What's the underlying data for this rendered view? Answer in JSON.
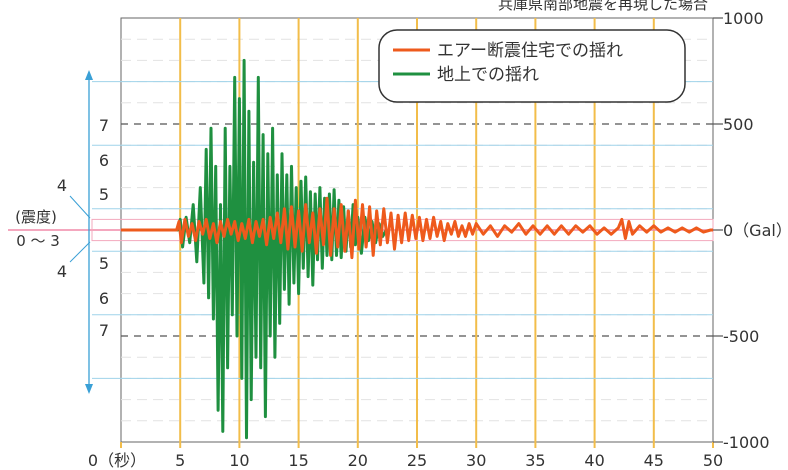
{
  "chart_data": {
    "type": "line",
    "title": "兵庫県南部地震を再現した場合",
    "x_ticks": [
      0,
      5,
      10,
      15,
      20,
      25,
      30,
      35,
      40,
      45,
      50
    ],
    "x_zero_label": "0（秒）",
    "xlim": [
      0,
      50
    ],
    "y_ticks": [
      1000,
      500,
      0,
      -500,
      -1000
    ],
    "y_zero_label": "0（Gal）",
    "ylim": [
      -1000,
      1000
    ],
    "intensity_scale": {
      "title": "(震度)",
      "center_label": "0 ～ 3",
      "upper": [
        "7",
        "6",
        "5",
        "4"
      ],
      "lower": [
        "4",
        "5",
        "6",
        "7"
      ]
    },
    "series": [
      {
        "name": "エアー断震住宅での揺れ",
        "color": "#ee5a1c",
        "x": [
          0,
          4.7,
          4.9,
          5.1,
          5.4,
          5.7,
          6.0,
          6.3,
          6.6,
          6.9,
          7.2,
          7.5,
          7.8,
          8.1,
          8.4,
          8.7,
          9.0,
          9.3,
          9.6,
          9.9,
          10.2,
          10.5,
          10.8,
          11.1,
          11.4,
          11.7,
          12.0,
          12.3,
          12.6,
          12.9,
          13.2,
          13.5,
          13.8,
          14.1,
          14.4,
          14.7,
          15.0,
          15.3,
          15.6,
          15.9,
          16.2,
          16.5,
          16.8,
          17.1,
          17.4,
          17.7,
          18.0,
          18.3,
          18.6,
          18.9,
          19.2,
          19.5,
          19.8,
          20.1,
          20.4,
          20.7,
          21.0,
          21.3,
          21.6,
          21.9,
          22.2,
          22.5,
          22.8,
          23.1,
          23.4,
          23.7,
          24.0,
          24.3,
          24.6,
          24.9,
          25.2,
          25.5,
          25.8,
          26.1,
          26.4,
          26.7,
          27.0,
          27.3,
          27.6,
          27.9,
          28.2,
          28.5,
          28.8,
          29.1,
          29.4,
          29.7,
          30.0,
          30.6,
          31.2,
          31.8,
          32.4,
          33.0,
          33.6,
          34.2,
          34.8,
          35.4,
          36.0,
          36.6,
          37.2,
          37.8,
          38.4,
          39.0,
          39.6,
          40.2,
          40.8,
          41.4,
          42.0,
          42.3,
          42.6,
          42.9,
          43.2,
          43.8,
          44.4,
          45.0,
          45.6,
          46.2,
          46.8,
          47.4,
          48.0,
          48.6,
          49.2,
          49.8,
          50
        ],
        "y": [
          0,
          0,
          40,
          -60,
          50,
          -30,
          30,
          -50,
          40,
          -20,
          50,
          -40,
          30,
          -60,
          40,
          -30,
          50,
          -20,
          40,
          -50,
          30,
          -40,
          50,
          -60,
          40,
          -30,
          50,
          -70,
          60,
          -40,
          80,
          -60,
          100,
          -90,
          110,
          -80,
          90,
          -100,
          120,
          -60,
          80,
          -110,
          100,
          -70,
          150,
          -120,
          100,
          -80,
          120,
          -100,
          90,
          -130,
          140,
          -90,
          120,
          -80,
          110,
          -120,
          90,
          -70,
          100,
          -60,
          80,
          -90,
          70,
          -60,
          80,
          -50,
          70,
          -40,
          60,
          -50,
          50,
          -40,
          60,
          -30,
          40,
          -50,
          30,
          -20,
          40,
          -30,
          20,
          -30,
          30,
          -20,
          30,
          -20,
          20,
          -30,
          20,
          -10,
          30,
          -20,
          20,
          -20,
          20,
          -20,
          20,
          -20,
          20,
          -10,
          20,
          -20,
          10,
          -20,
          10,
          50,
          -40,
          40,
          -20,
          20,
          -10,
          20,
          -10,
          10,
          -10,
          10,
          -10,
          10,
          -10,
          0,
          0
        ]
      },
      {
        "name": "地上での揺れ",
        "color": "#1f9040",
        "x": [
          0,
          4.8,
          5.0,
          5.2,
          5.5,
          5.8,
          6.1,
          6.4,
          6.7,
          7.0,
          7.2,
          7.4,
          7.6,
          7.8,
          8.0,
          8.2,
          8.4,
          8.6,
          8.8,
          9.0,
          9.2,
          9.4,
          9.6,
          9.8,
          10.0,
          10.2,
          10.4,
          10.6,
          10.8,
          11.0,
          11.2,
          11.4,
          11.6,
          11.8,
          12.0,
          12.2,
          12.4,
          12.6,
          12.8,
          13.0,
          13.2,
          13.4,
          13.6,
          13.8,
          14.0,
          14.2,
          14.4,
          14.6,
          14.8,
          15.0,
          15.2,
          15.4,
          15.6,
          15.8,
          16.0,
          16.2,
          16.4,
          16.6,
          16.8,
          17.0,
          17.2,
          17.4,
          17.6,
          17.8,
          18.0,
          18.2,
          18.4,
          18.6,
          18.8,
          19.0,
          19.2,
          19.4,
          19.6,
          19.8,
          20.0,
          20.3,
          20.6,
          20.9,
          21.2,
          21.5,
          21.8,
          22.1,
          22.4
        ],
        "y": [
          0,
          0,
          50,
          -80,
          60,
          -60,
          120,
          -150,
          200,
          -250,
          380,
          -320,
          480,
          -420,
          300,
          -850,
          120,
          -950,
          480,
          -650,
          300,
          -400,
          720,
          -500,
          620,
          -700,
          800,
          -980,
          560,
          -800,
          320,
          -600,
          720,
          -650,
          450,
          -880,
          360,
          -500,
          480,
          -600,
          260,
          -440,
          360,
          -280,
          260,
          -350,
          300,
          -250,
          200,
          -300,
          230,
          -180,
          250,
          -220,
          180,
          -260,
          170,
          -140,
          200,
          -180,
          150,
          -120,
          170,
          -140,
          190,
          -120,
          140,
          -130,
          110,
          -100,
          90,
          -80,
          120,
          -70,
          60,
          -110,
          60,
          -50,
          40,
          -60,
          30,
          -30,
          0
        ]
      }
    ]
  }
}
